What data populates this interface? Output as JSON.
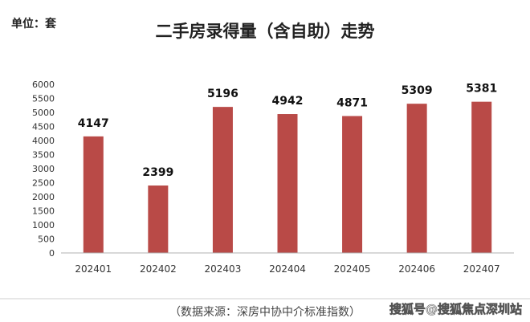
{
  "chart_data": {
    "type": "bar",
    "title": "二手房录得量（含自助）走势",
    "unit_label": "单位：套",
    "categories": [
      "202401",
      "202402",
      "202403",
      "202404",
      "202405",
      "202406",
      "202407"
    ],
    "values": [
      4147,
      2399,
      5196,
      4942,
      4871,
      5309,
      5381
    ],
    "ylim": [
      0,
      6000
    ],
    "yticks": [
      0,
      500,
      1000,
      1500,
      2000,
      2500,
      3000,
      3500,
      4000,
      4500,
      5000,
      5500,
      6000
    ],
    "grid": false,
    "legend": "none",
    "bar_color": "#b94a47",
    "source_note": "（数据来源：深房中协中介标准指数）",
    "watermark": "搜狐号@搜狐焦点深圳站"
  }
}
